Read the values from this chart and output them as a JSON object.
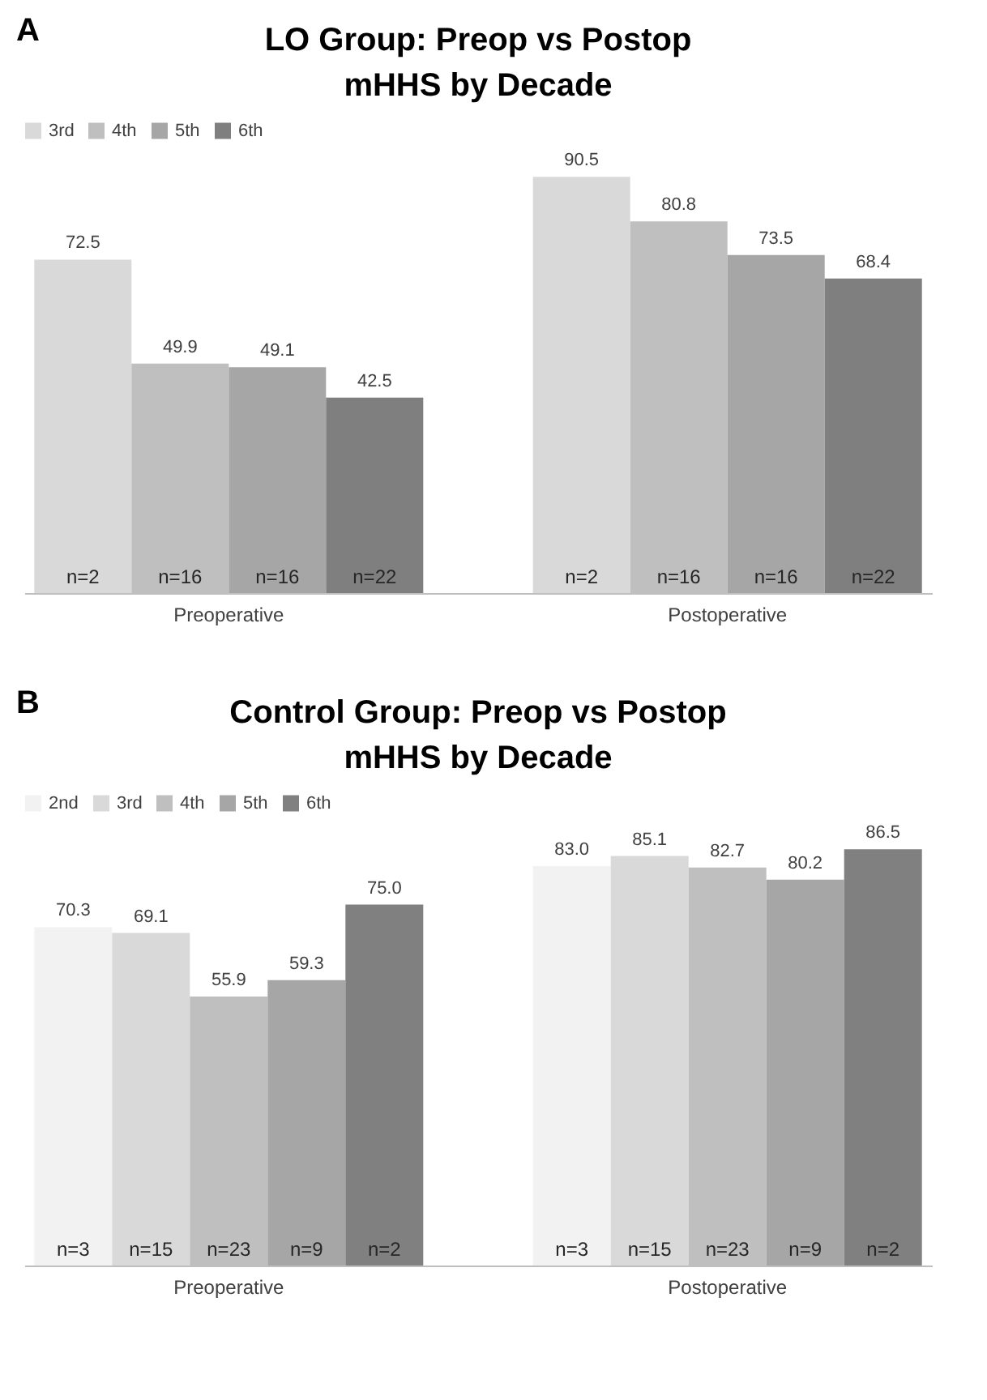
{
  "chart_data": [
    {
      "type": "bar",
      "title": "LO Group: Preop vs Postop\nmHHS by Decade",
      "categories": [
        "Preoperative",
        "Postoperative"
      ],
      "legend": "top",
      "series": [
        {
          "name": "3rd",
          "color": "#d9d9d9",
          "values": [
            72.5,
            90.5
          ],
          "value_labels": [
            "72.5",
            "90.5"
          ]
        },
        {
          "name": "4th",
          "color": "#bfbfbf",
          "values": [
            49.9,
            80.8
          ],
          "value_labels": [
            "49.9",
            "80.8"
          ]
        },
        {
          "name": "5th",
          "color": "#a6a6a6",
          "values": [
            49.1,
            73.5
          ],
          "value_labels": [
            "49.1",
            "73.5"
          ]
        },
        {
          "name": "6th",
          "color": "#7f7f7f",
          "values": [
            42.5,
            68.4
          ],
          "value_labels": [
            "42.5",
            "68.4"
          ]
        }
      ],
      "annotations": [
        "A",
        "n=2",
        "n=16",
        "n=16",
        "n=22",
        "n=2",
        "n=16",
        "n=16",
        "n=22"
      ]
    },
    {
      "type": "bar",
      "title": "Control Group: Preop vs Postop\nmHHS by Decade",
      "categories": [
        "Preoperative",
        "Postoperative"
      ],
      "legend": "top",
      "series": [
        {
          "name": "2nd",
          "color": "#f2f2f2",
          "values": [
            70.3,
            83.0
          ],
          "value_labels": [
            "70.3",
            "83.0"
          ]
        },
        {
          "name": "3rd",
          "color": "#d9d9d9",
          "values": [
            69.1,
            85.1
          ],
          "value_labels": [
            "69.1",
            "85.1"
          ]
        },
        {
          "name": "4th",
          "color": "#bfbfbf",
          "values": [
            55.9,
            82.7
          ],
          "value_labels": [
            "55.9",
            "82.7"
          ]
        },
        {
          "name": "5th",
          "color": "#a6a6a6",
          "values": [
            59.3,
            80.2
          ],
          "value_labels": [
            "59.3",
            "80.2"
          ]
        },
        {
          "name": "6th",
          "color": "#808080",
          "values": [
            75.0,
            86.5
          ],
          "value_labels": [
            "75.0",
            "86.5"
          ]
        }
      ],
      "annotations": [
        "B",
        "n=3",
        "n=15",
        "n=23",
        "n=9",
        "n=2",
        "n=3",
        "n=15",
        "n=23",
        "n=9",
        "n=2"
      ]
    }
  ]
}
